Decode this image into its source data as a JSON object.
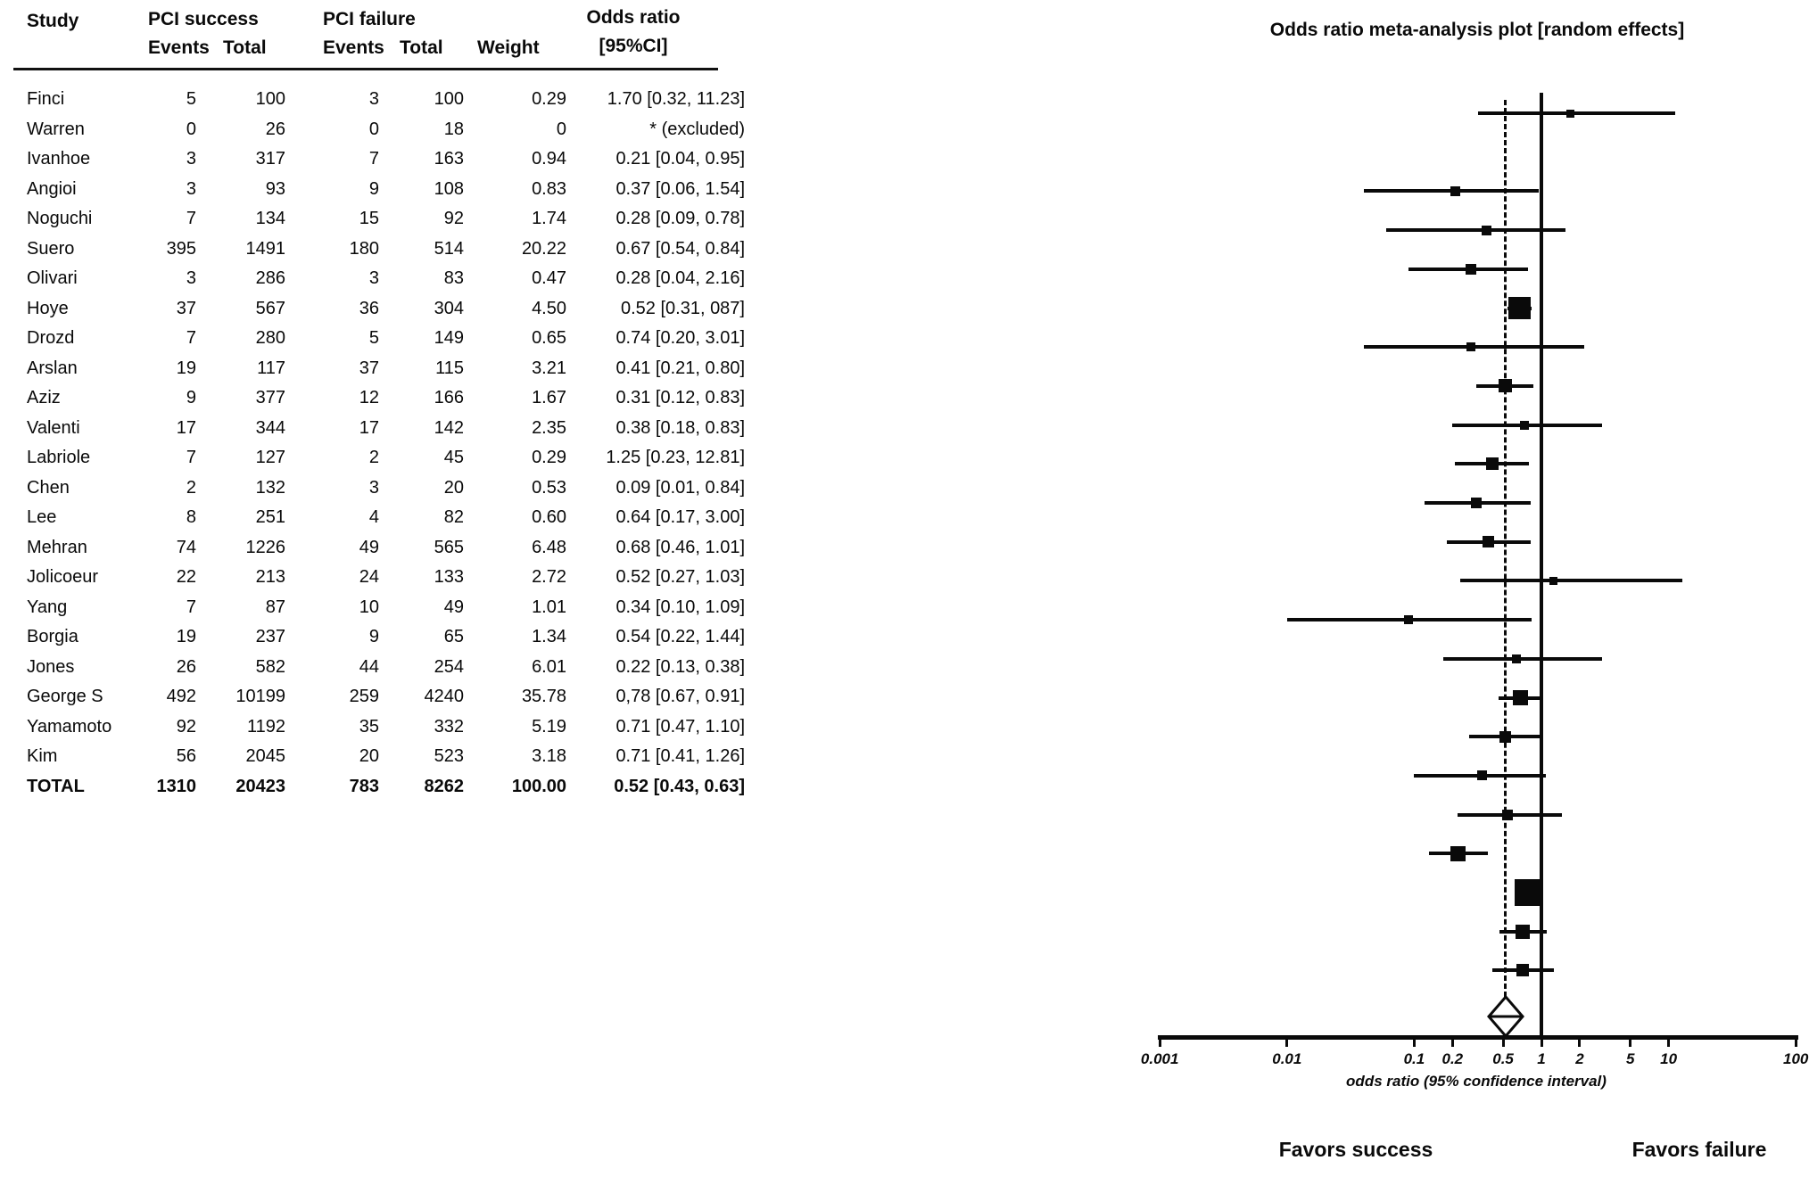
{
  "table": {
    "headers": {
      "study": "Study",
      "pci_success": "PCI success",
      "pci_failure": "PCI failure",
      "events_success": "Events",
      "total_success": "Total",
      "events_failure": "Events",
      "total_failure": "Total",
      "weight": "Weight",
      "odds_ratio_line1": "Odds ratio",
      "odds_ratio_line2": "[95%CI]"
    },
    "rows": [
      {
        "study": "Finci",
        "se": "5",
        "st": "100",
        "fe": "3",
        "ft": "100",
        "weight": "0.29",
        "or_text": "1.70 [0.32, 11.23]"
      },
      {
        "study": "Warren",
        "se": "0",
        "st": "26",
        "fe": "0",
        "ft": "18",
        "weight": "0",
        "or_text": "* (excluded)"
      },
      {
        "study": "Ivanhoe",
        "se": "3",
        "st": "317",
        "fe": "7",
        "ft": "163",
        "weight": "0.94",
        "or_text": "0.21 [0.04, 0.95]"
      },
      {
        "study": "Angioi",
        "se": "3",
        "st": "93",
        "fe": "9",
        "ft": "108",
        "weight": "0.83",
        "or_text": "0.37 [0.06, 1.54]"
      },
      {
        "study": "Noguchi",
        "se": "7",
        "st": "134",
        "fe": "15",
        "ft": "92",
        "weight": "1.74",
        "or_text": "0.28 [0.09, 0.78]"
      },
      {
        "study": "Suero",
        "se": "395",
        "st": "1491",
        "fe": "180",
        "ft": "514",
        "weight": "20.22",
        "or_text": "0.67 [0.54, 0.84]"
      },
      {
        "study": "Olivari",
        "se": "3",
        "st": "286",
        "fe": "3",
        "ft": "83",
        "weight": "0.47",
        "or_text": "0.28 [0.04, 2.16]"
      },
      {
        "study": "Hoye",
        "se": "37",
        "st": "567",
        "fe": "36",
        "ft": "304",
        "weight": "4.50",
        "or_text": "0.52 [0.31, 087]"
      },
      {
        "study": "Drozd",
        "se": "7",
        "st": "280",
        "fe": "5",
        "ft": "149",
        "weight": "0.65",
        "or_text": "0.74 [0.20, 3.01]"
      },
      {
        "study": "Arslan",
        "se": "19",
        "st": "117",
        "fe": "37",
        "ft": "115",
        "weight": "3.21",
        "or_text": "0.41 [0.21, 0.80]"
      },
      {
        "study": "Aziz",
        "se": "9",
        "st": "377",
        "fe": "12",
        "ft": "166",
        "weight": "1.67",
        "or_text": "0.31 [0.12, 0.83]"
      },
      {
        "study": "Valenti",
        "se": "17",
        "st": "344",
        "fe": "17",
        "ft": "142",
        "weight": "2.35",
        "or_text": "0.38 [0.18, 0.83]"
      },
      {
        "study": "Labriole",
        "se": "7",
        "st": "127",
        "fe": "2",
        "ft": "45",
        "weight": "0.29",
        "or_text": "1.25 [0.23, 12.81]"
      },
      {
        "study": "Chen",
        "se": "2",
        "st": "132",
        "fe": "3",
        "ft": "20",
        "weight": "0.53",
        "or_text": "0.09 [0.01, 0.84]"
      },
      {
        "study": "Lee",
        "se": "8",
        "st": "251",
        "fe": "4",
        "ft": "82",
        "weight": "0.60",
        "or_text": "0.64 [0.17, 3.00]"
      },
      {
        "study": "Mehran",
        "se": "74",
        "st": "1226",
        "fe": "49",
        "ft": "565",
        "weight": "6.48",
        "or_text": "0.68 [0.46, 1.01]"
      },
      {
        "study": "Jolicoeur",
        "se": "22",
        "st": "213",
        "fe": "24",
        "ft": "133",
        "weight": "2.72",
        "or_text": "0.52 [0.27, 1.03]"
      },
      {
        "study": "Yang",
        "se": "7",
        "st": "87",
        "fe": "10",
        "ft": "49",
        "weight": "1.01",
        "or_text": "0.34 [0.10, 1.09]"
      },
      {
        "study": "Borgia",
        "se": "19",
        "st": "237",
        "fe": "9",
        "ft": "65",
        "weight": "1.34",
        "or_text": "0.54 [0.22, 1.44]"
      },
      {
        "study": "Jones",
        "se": "26",
        "st": "582",
        "fe": "44",
        "ft": "254",
        "weight": "6.01",
        "or_text": "0.22 [0.13, 0.38]"
      },
      {
        "study": "George S",
        "se": "492",
        "st": "10199",
        "fe": "259",
        "ft": "4240",
        "weight": "35.78",
        "or_text": "0,78 [0.67, 0.91]"
      },
      {
        "study": "Yamamoto",
        "se": "92",
        "st": "1192",
        "fe": "35",
        "ft": "332",
        "weight": "5.19",
        "or_text": "0.71 [0.47, 1.10]"
      },
      {
        "study": "Kim",
        "se": "56",
        "st": "2045",
        "fe": "20",
        "ft": "523",
        "weight": "3.18",
        "or_text": "0.71 [0.41, 1.26]"
      }
    ],
    "total_row": {
      "study": "TOTAL",
      "se": "1310",
      "st": "20423",
      "fe": "783",
      "ft": "8262",
      "weight": "100.00",
      "or_text": "0.52 [0.43, 0.63]"
    }
  },
  "chart_data": {
    "type": "forest",
    "title": "Odds ratio meta-analysis plot [random effects]",
    "xlabel": "odds ratio (95% confidence interval)",
    "scale": "log",
    "xlim": [
      0.001,
      100
    ],
    "x_ticks": [
      0.001,
      0.01,
      0.1,
      0.2,
      0.5,
      1,
      2,
      5,
      10,
      100
    ],
    "x_tick_labels": [
      "0.001",
      "0.01",
      "0.1",
      "0.2",
      "0.5",
      "1",
      "2",
      "5",
      "10",
      "100"
    ],
    "reference_line": 1,
    "pooled_line": 0.52,
    "studies": [
      {
        "name": "Finci",
        "or": 1.7,
        "lo": 0.32,
        "hi": 11.23,
        "weight": 0.29
      },
      {
        "name": "Warren",
        "or": null,
        "lo": null,
        "hi": null,
        "weight": 0
      },
      {
        "name": "Ivanhoe",
        "or": 0.21,
        "lo": 0.04,
        "hi": 0.95,
        "weight": 0.94
      },
      {
        "name": "Angioi",
        "or": 0.37,
        "lo": 0.06,
        "hi": 1.54,
        "weight": 0.83
      },
      {
        "name": "Noguchi",
        "or": 0.28,
        "lo": 0.09,
        "hi": 0.78,
        "weight": 1.74
      },
      {
        "name": "Suero",
        "or": 0.67,
        "lo": 0.54,
        "hi": 0.84,
        "weight": 20.22
      },
      {
        "name": "Olivari",
        "or": 0.28,
        "lo": 0.04,
        "hi": 2.16,
        "weight": 0.47
      },
      {
        "name": "Hoye",
        "or": 0.52,
        "lo": 0.31,
        "hi": 0.87,
        "weight": 4.5
      },
      {
        "name": "Drozd",
        "or": 0.74,
        "lo": 0.2,
        "hi": 3.01,
        "weight": 0.65
      },
      {
        "name": "Arslan",
        "or": 0.41,
        "lo": 0.21,
        "hi": 0.8,
        "weight": 3.21
      },
      {
        "name": "Aziz",
        "or": 0.31,
        "lo": 0.12,
        "hi": 0.83,
        "weight": 1.67
      },
      {
        "name": "Valenti",
        "or": 0.38,
        "lo": 0.18,
        "hi": 0.83,
        "weight": 2.35
      },
      {
        "name": "Labriole",
        "or": 1.25,
        "lo": 0.23,
        "hi": 12.81,
        "weight": 0.29
      },
      {
        "name": "Chen",
        "or": 0.09,
        "lo": 0.01,
        "hi": 0.84,
        "weight": 0.53
      },
      {
        "name": "Lee",
        "or": 0.64,
        "lo": 0.17,
        "hi": 3.0,
        "weight": 0.6
      },
      {
        "name": "Mehran",
        "or": 0.68,
        "lo": 0.46,
        "hi": 1.01,
        "weight": 6.48
      },
      {
        "name": "Jolicoeur",
        "or": 0.52,
        "lo": 0.27,
        "hi": 1.03,
        "weight": 2.72
      },
      {
        "name": "Yang",
        "or": 0.34,
        "lo": 0.1,
        "hi": 1.09,
        "weight": 1.01
      },
      {
        "name": "Borgia",
        "or": 0.54,
        "lo": 0.22,
        "hi": 1.44,
        "weight": 1.34
      },
      {
        "name": "Jones",
        "or": 0.22,
        "lo": 0.13,
        "hi": 0.38,
        "weight": 6.01
      },
      {
        "name": "George S",
        "or": 0.78,
        "lo": 0.67,
        "hi": 0.91,
        "weight": 35.78
      },
      {
        "name": "Yamamoto",
        "or": 0.71,
        "lo": 0.47,
        "hi": 1.1,
        "weight": 5.19
      },
      {
        "name": "Kim",
        "or": 0.71,
        "lo": 0.41,
        "hi": 1.26,
        "weight": 3.18
      }
    ],
    "pooled": {
      "name": "TOTAL",
      "or": 0.52,
      "lo": 0.43,
      "hi": 0.63
    },
    "favors_left": "Favors success",
    "favors_right": "Favors failure"
  }
}
